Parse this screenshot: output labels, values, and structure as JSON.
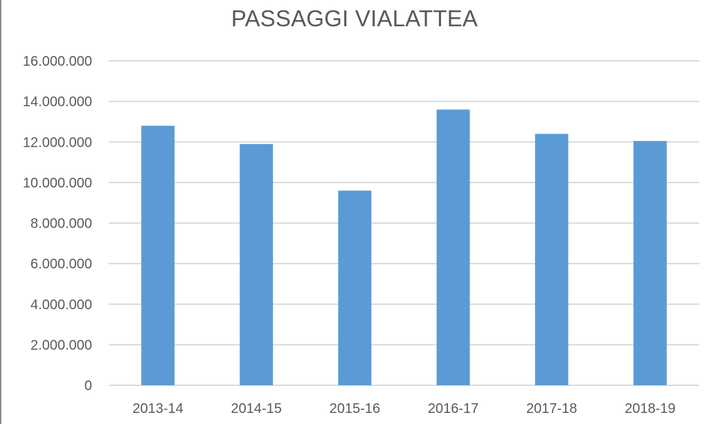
{
  "chart_data": {
    "type": "bar",
    "title": "PASSAGGI VIALATTEA",
    "xlabel": "",
    "ylabel": "",
    "categories": [
      "2013-14",
      "2014-15",
      "2015-16",
      "2016-17",
      "2017-18",
      "2018-19"
    ],
    "values": [
      12800000,
      11900000,
      9600000,
      13600000,
      12400000,
      12050000
    ],
    "ylim": [
      0,
      16000000
    ],
    "yticks": [
      0,
      2000000,
      4000000,
      6000000,
      8000000,
      10000000,
      12000000,
      14000000,
      16000000
    ],
    "ytick_labels": [
      "0",
      "2.000.000",
      "4.000.000",
      "6.000.000",
      "8.000.000",
      "10.000.000",
      "12.000.000",
      "14.000.000",
      "16.000.000"
    ],
    "grid": true,
    "legend": "none",
    "bar_color": "#5b9bd5",
    "grid_color": "#d9d9d9",
    "text_color": "#595959"
  }
}
